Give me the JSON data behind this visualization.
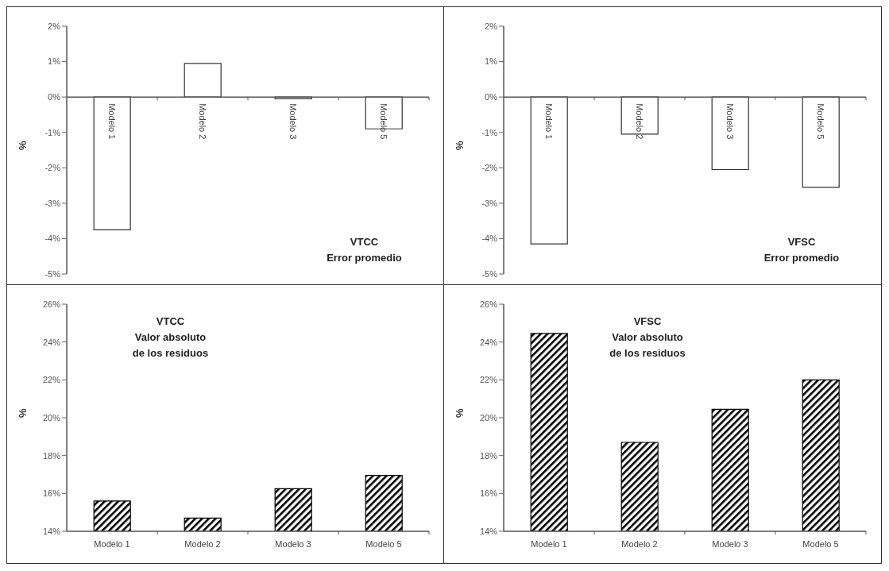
{
  "chart_data": [
    {
      "type": "bar",
      "ylabel": "%",
      "categories": [
        "Modelo 1",
        "Modelo 2",
        "Modelo 3",
        "Modelo 5"
      ],
      "annotations": [
        "VTCC",
        "Error promedio"
      ],
      "series": [
        {
          "color": "#ffffff",
          "values": [
            -3.75,
            0.95,
            -0.05,
            -0.9
          ]
        }
      ],
      "ylim": [
        -5,
        2
      ],
      "yticks": [
        {
          "value": -5,
          "label": "-5%"
        },
        {
          "value": -4,
          "label": "-4%"
        },
        {
          "value": -3,
          "label": "-3%"
        },
        {
          "value": -2,
          "label": "-2%"
        },
        {
          "value": -1,
          "label": "-1%"
        },
        {
          "value": 0,
          "label": "0%"
        },
        {
          "value": 1,
          "label": "1%"
        },
        {
          "value": 2,
          "label": "2%"
        }
      ],
      "grid": false,
      "legend": false
    },
    {
      "type": "bar",
      "ylabel": "%",
      "categories": [
        "Modelo 1",
        "Modelo 2",
        "Modelo 3",
        "Modelo 5"
      ],
      "annotations": [
        "VFSC",
        "Error promedio"
      ],
      "series": [
        {
          "color": "#ffffff",
          "values": [
            -4.15,
            -1.05,
            -2.05,
            -2.55
          ]
        }
      ],
      "ylim": [
        -5,
        2
      ],
      "yticks": [
        {
          "value": -5,
          "label": "-5%"
        },
        {
          "value": -4,
          "label": "-4%"
        },
        {
          "value": -3,
          "label": "-3%"
        },
        {
          "value": -2,
          "label": "-2%"
        },
        {
          "value": -1,
          "label": "-1%"
        },
        {
          "value": 0,
          "label": "0%"
        },
        {
          "value": 1,
          "label": "1%"
        },
        {
          "value": 2,
          "label": "2%"
        }
      ],
      "grid": false,
      "legend": false
    },
    {
      "type": "bar",
      "ylabel": "%",
      "categories": [
        "Modelo 1",
        "Modelo 2",
        "Modelo 3",
        "Modelo 5"
      ],
      "annotations": [
        "VTCC",
        "Valor absoluto",
        "de los residuos"
      ],
      "series": [
        {
          "color": "#000000",
          "values": [
            15.6,
            14.7,
            16.25,
            16.95
          ]
        }
      ],
      "ylim": [
        14,
        26
      ],
      "yticks": [
        {
          "value": 14,
          "label": "14%"
        },
        {
          "value": 16,
          "label": "16%"
        },
        {
          "value": 18,
          "label": "18%"
        },
        {
          "value": 20,
          "label": "20%"
        },
        {
          "value": 22,
          "label": "22%"
        },
        {
          "value": 24,
          "label": "24%"
        },
        {
          "value": 26,
          "label": "26%"
        }
      ],
      "grid": false,
      "legend": false
    },
    {
      "type": "bar",
      "ylabel": "%",
      "categories": [
        "Modelo 1",
        "Modelo 2",
        "Modelo 3",
        "Modelo 5"
      ],
      "annotations": [
        "VFSC",
        "Valor absoluto",
        "de los residuos"
      ],
      "series": [
        {
          "color": "#000000",
          "values": [
            24.45,
            18.7,
            20.45,
            22.0
          ]
        }
      ],
      "ylim": [
        14,
        26
      ],
      "yticks": [
        {
          "value": 14,
          "label": "14%"
        },
        {
          "value": 16,
          "label": "16%"
        },
        {
          "value": 18,
          "label": "18%"
        },
        {
          "value": 20,
          "label": "20%"
        },
        {
          "value": 22,
          "label": "22%"
        },
        {
          "value": 24,
          "label": "24%"
        },
        {
          "value": 26,
          "label": "26%"
        }
      ],
      "grid": false,
      "legend": false
    }
  ]
}
